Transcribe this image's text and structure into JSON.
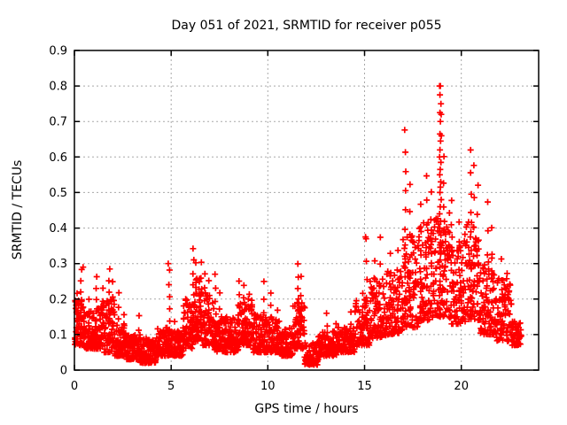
{
  "page": {
    "background": "#ffffff"
  },
  "chart_data": {
    "type": "scatter",
    "title": "Day 051 of 2021, SRMTID for receiver p055",
    "xlabel": "GPS time / hours",
    "ylabel": "SRMTID / TECUs",
    "xlim": [
      0,
      24
    ],
    "ylim": [
      0,
      0.9
    ],
    "xticks": [
      0,
      5,
      10,
      15,
      20
    ],
    "yticks": [
      0,
      0.1,
      0.2,
      0.3,
      0.4,
      0.5,
      0.6,
      0.7,
      0.8,
      0.9
    ],
    "grid": true,
    "grid_style": "dotted",
    "grid_color": "#a8a8a8",
    "axis_color": "#000000",
    "legend": "none",
    "marker": {
      "symbol": "plus",
      "color": "#ff0000",
      "size": 7,
      "stroke": 1.7
    },
    "seed": 51,
    "x_data_range": [
      0.03,
      23.1
    ],
    "segments_format": [
      "x_start",
      "x_end",
      "n_points",
      "band_low_TECU",
      "band_high_TECU"
    ],
    "segments": [
      [
        0.0,
        0.5,
        60,
        0.07,
        0.2
      ],
      [
        0.5,
        1.0,
        60,
        0.06,
        0.17
      ],
      [
        1.0,
        1.5,
        60,
        0.06,
        0.18
      ],
      [
        1.5,
        2.1,
        70,
        0.05,
        0.2
      ],
      [
        2.1,
        2.7,
        70,
        0.04,
        0.13
      ],
      [
        2.7,
        3.4,
        80,
        0.03,
        0.1
      ],
      [
        3.4,
        4.2,
        90,
        0.02,
        0.09
      ],
      [
        4.2,
        4.9,
        80,
        0.04,
        0.12
      ],
      [
        4.9,
        5.6,
        80,
        0.04,
        0.11
      ],
      [
        5.6,
        6.1,
        60,
        0.06,
        0.2
      ],
      [
        6.1,
        6.6,
        60,
        0.08,
        0.26
      ],
      [
        6.6,
        7.2,
        70,
        0.07,
        0.22
      ],
      [
        7.2,
        7.9,
        80,
        0.05,
        0.15
      ],
      [
        7.9,
        8.5,
        70,
        0.05,
        0.15
      ],
      [
        8.5,
        9.2,
        80,
        0.07,
        0.2
      ],
      [
        9.2,
        9.9,
        80,
        0.05,
        0.16
      ],
      [
        9.9,
        10.6,
        80,
        0.05,
        0.15
      ],
      [
        10.6,
        11.3,
        80,
        0.04,
        0.12
      ],
      [
        11.3,
        11.9,
        70,
        0.06,
        0.2
      ],
      [
        11.9,
        12.6,
        80,
        0.015,
        0.08
      ],
      [
        12.6,
        13.6,
        100,
        0.04,
        0.11
      ],
      [
        13.6,
        14.5,
        90,
        0.05,
        0.12
      ],
      [
        14.5,
        15.3,
        80,
        0.07,
        0.2
      ],
      [
        15.3,
        16.1,
        80,
        0.09,
        0.26
      ],
      [
        16.1,
        17.0,
        90,
        0.1,
        0.28
      ],
      [
        17.0,
        17.8,
        80,
        0.12,
        0.38
      ],
      [
        17.8,
        18.6,
        80,
        0.14,
        0.42
      ],
      [
        18.6,
        19.4,
        80,
        0.15,
        0.45
      ],
      [
        19.4,
        20.2,
        80,
        0.13,
        0.38
      ],
      [
        20.2,
        21.0,
        80,
        0.14,
        0.42
      ],
      [
        21.0,
        21.8,
        80,
        0.1,
        0.32
      ],
      [
        21.8,
        22.6,
        80,
        0.08,
        0.26
      ],
      [
        22.6,
        23.1,
        50,
        0.07,
        0.14
      ]
    ],
    "spikes_format": [
      "x_hours",
      "peak_TECU",
      "n_points",
      "base_TECU"
    ],
    "spikes": [
      [
        0.15,
        0.22,
        5,
        0.1
      ],
      [
        0.35,
        0.285,
        8,
        0.09
      ],
      [
        0.75,
        0.2,
        4,
        0.08
      ],
      [
        1.15,
        0.265,
        7,
        0.08
      ],
      [
        1.45,
        0.23,
        5,
        0.08
      ],
      [
        1.8,
        0.285,
        8,
        0.07
      ],
      [
        2.0,
        0.25,
        5,
        0.07
      ],
      [
        2.3,
        0.22,
        5,
        0.06
      ],
      [
        2.55,
        0.16,
        4,
        0.05
      ],
      [
        3.35,
        0.15,
        4,
        0.04
      ],
      [
        4.9,
        0.28,
        8,
        0.05
      ],
      [
        5.2,
        0.14,
        4,
        0.05
      ],
      [
        6.15,
        0.345,
        9,
        0.1
      ],
      [
        6.3,
        0.3,
        6,
        0.1
      ],
      [
        6.55,
        0.3,
        6,
        0.1
      ],
      [
        6.75,
        0.27,
        6,
        0.09
      ],
      [
        6.95,
        0.25,
        5,
        0.09
      ],
      [
        7.3,
        0.27,
        6,
        0.08
      ],
      [
        7.5,
        0.22,
        4,
        0.08
      ],
      [
        8.5,
        0.25,
        6,
        0.09
      ],
      [
        8.75,
        0.24,
        5,
        0.09
      ],
      [
        9.05,
        0.21,
        4,
        0.08
      ],
      [
        9.8,
        0.25,
        5,
        0.07
      ],
      [
        10.15,
        0.22,
        5,
        0.07
      ],
      [
        10.5,
        0.17,
        4,
        0.06
      ],
      [
        11.55,
        0.3,
        8,
        0.08
      ],
      [
        11.7,
        0.26,
        5,
        0.08
      ],
      [
        13.05,
        0.16,
        4,
        0.05
      ],
      [
        13.5,
        0.13,
        3,
        0.05
      ],
      [
        14.3,
        0.16,
        4,
        0.06
      ],
      [
        14.9,
        0.22,
        5,
        0.08
      ],
      [
        15.1,
        0.37,
        6,
        0.09
      ],
      [
        15.55,
        0.31,
        5,
        0.1
      ],
      [
        15.8,
        0.37,
        5,
        0.11
      ],
      [
        16.35,
        0.33,
        5,
        0.12
      ],
      [
        16.7,
        0.34,
        5,
        0.12
      ],
      [
        17.1,
        0.675,
        12,
        0.14
      ],
      [
        17.35,
        0.52,
        7,
        0.14
      ],
      [
        17.9,
        0.47,
        6,
        0.15
      ],
      [
        18.2,
        0.55,
        7,
        0.16
      ],
      [
        18.45,
        0.5,
        6,
        0.16
      ],
      [
        19.1,
        0.6,
        8,
        0.16
      ],
      [
        19.5,
        0.48,
        6,
        0.15
      ],
      [
        19.9,
        0.42,
        5,
        0.14
      ],
      [
        20.5,
        0.62,
        10,
        0.15
      ],
      [
        20.65,
        0.58,
        6,
        0.15
      ],
      [
        20.85,
        0.52,
        6,
        0.15
      ],
      [
        21.35,
        0.47,
        6,
        0.12
      ],
      [
        21.6,
        0.4,
        5,
        0.11
      ],
      [
        22.1,
        0.31,
        5,
        0.09
      ],
      [
        22.4,
        0.27,
        4,
        0.09
      ]
    ],
    "outliers_format": [
      "x_hours",
      "y_TECU"
    ],
    "outliers": [
      [
        0.45,
        0.29
      ],
      [
        4.85,
        0.3
      ],
      [
        15.05,
        0.375
      ],
      [
        18.88,
        0.8
      ],
      [
        18.92,
        0.8
      ],
      [
        18.9,
        0.775
      ],
      [
        18.95,
        0.75
      ],
      [
        18.9,
        0.725
      ],
      [
        18.96,
        0.72
      ],
      [
        18.92,
        0.7
      ],
      [
        18.9,
        0.665
      ],
      [
        18.97,
        0.66
      ],
      [
        18.93,
        0.645
      ],
      [
        18.9,
        0.62
      ],
      [
        18.88,
        0.6
      ],
      [
        18.95,
        0.585
      ],
      [
        18.91,
        0.565
      ],
      [
        18.89,
        0.55
      ],
      [
        18.94,
        0.53
      ],
      [
        18.92,
        0.515
      ],
      [
        18.9,
        0.5
      ],
      [
        18.96,
        0.48
      ],
      [
        18.91,
        0.46
      ],
      [
        18.88,
        0.44
      ],
      [
        18.93,
        0.42
      ],
      [
        18.9,
        0.4
      ],
      [
        18.95,
        0.38
      ],
      [
        18.92,
        0.36
      ],
      [
        18.89,
        0.345
      ],
      [
        18.94,
        0.33
      ],
      [
        18.91,
        0.31
      ],
      [
        18.9,
        0.29
      ],
      [
        18.93,
        0.27
      ],
      [
        18.9,
        0.25
      ],
      [
        18.92,
        0.23
      ],
      [
        18.88,
        0.21
      ],
      [
        18.94,
        0.19
      ],
      [
        18.91,
        0.17
      ]
    ]
  }
}
